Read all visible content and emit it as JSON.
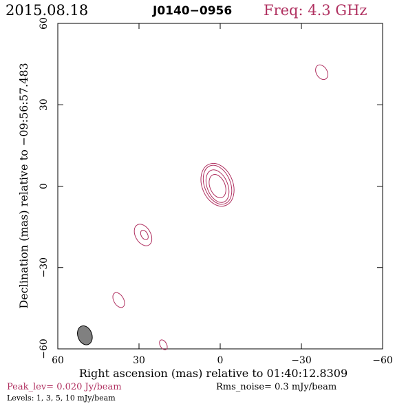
{
  "header": {
    "date": "2015.08.18",
    "source": "J0140−0956",
    "freq": "Freq: 4.3 GHz"
  },
  "footer": {
    "peak": "Peak_lev=  0.020 Jy/beam",
    "rms": "Rms_noise=   0.3 mJy/beam",
    "levels": "Levels:   1,   3,   5,  10 mJy/beam"
  },
  "colors": {
    "accent": "#b03060",
    "contour": "#b03060",
    "beam_fill": "#808080",
    "axis": "#000000"
  },
  "chart_data": {
    "type": "contour",
    "title": "J0140−0956",
    "xlabel": "Right ascension (mas) relative to 01:40:12.8309",
    "ylabel": "Declination (mas) relative to −09:56:57.483",
    "xlim": [
      60,
      -60
    ],
    "ylim": [
      -60,
      60
    ],
    "x_ticks": [
      60,
      30,
      0,
      -30,
      -60
    ],
    "y_ticks": [
      -60,
      -30,
      0,
      30,
      60
    ],
    "x_tick_labels": [
      "60",
      "30",
      "0",
      "−30",
      "−60"
    ],
    "y_tick_labels": [
      "−60",
      "−30",
      "0",
      "30",
      "60"
    ],
    "levels_mjy": [
      1,
      3,
      5,
      10
    ],
    "contours": [
      {
        "x": 1,
        "y": 0,
        "rx": 2.8,
        "ry": 4.5,
        "angle": 22
      },
      {
        "x": 1,
        "y": 0,
        "rx": 3.8,
        "ry": 6.3,
        "angle": 22
      },
      {
        "x": 1,
        "y": 0.5,
        "rx": 4.8,
        "ry": 7.5,
        "angle": 22
      },
      {
        "x": 1,
        "y": 0.5,
        "rx": 5.7,
        "ry": 8.2,
        "angle": 22
      },
      {
        "x": 28.5,
        "y": -18,
        "rx": 2.8,
        "ry": 4.3,
        "angle": 30
      },
      {
        "x": 28,
        "y": -18,
        "rx": 1.2,
        "ry": 1.9,
        "angle": 30
      },
      {
        "x": 37.5,
        "y": -42,
        "rx": 1.8,
        "ry": 3,
        "angle": 30
      },
      {
        "x": -37.5,
        "y": 42,
        "rx": 2,
        "ry": 2.9,
        "angle": 30
      },
      {
        "x": 21,
        "y": -58.5,
        "rx": 1.2,
        "ry": 2,
        "angle": 30
      }
    ],
    "beam": {
      "x": 50,
      "y": -55,
      "rx": 2.6,
      "ry": 3.6,
      "angle": 20
    }
  }
}
